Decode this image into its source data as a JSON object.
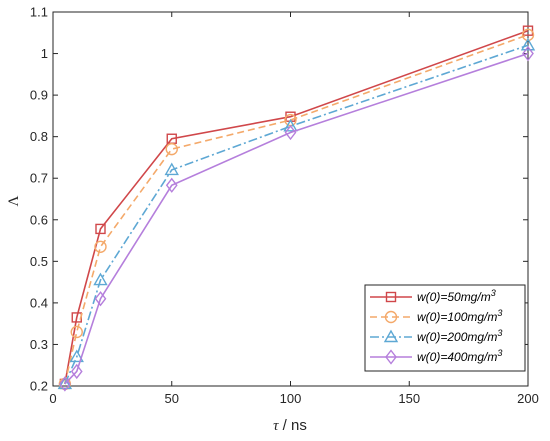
{
  "chart_data": {
    "type": "line",
    "title": "",
    "xlabel_symbol": "τ",
    "xlabel_unit": " / ns",
    "ylabel": "Λ",
    "xlim": [
      0,
      200
    ],
    "ylim": [
      0.2,
      1.1
    ],
    "xticks": [
      0,
      50,
      100,
      150,
      200
    ],
    "yticks": [
      0.2,
      0.3,
      0.4,
      0.5,
      0.6,
      0.7,
      0.8,
      0.9,
      1.0,
      1.1
    ],
    "ytick_labels": [
      "0.2",
      "0.3",
      "0.4",
      "0.5",
      "0.6",
      "0.7",
      "0.8",
      "0.9",
      "1",
      "1.1"
    ],
    "grid": false,
    "legend_position": "bottom-right",
    "x": [
      5,
      10,
      20,
      50,
      100,
      200
    ],
    "series": [
      {
        "name_prefix": "w(0)=50mg/m",
        "name_sup": "3",
        "color": "#d0474a",
        "dash": "",
        "marker": "square",
        "values": [
          0.205,
          0.365,
          0.578,
          0.795,
          0.848,
          1.055
        ]
      },
      {
        "name_prefix": "w(0)=100mg/m",
        "name_sup": "3",
        "color": "#f4a96a",
        "dash": "7,4",
        "marker": "circle",
        "values": [
          0.205,
          0.33,
          0.535,
          0.77,
          0.84,
          1.045
        ]
      },
      {
        "name_prefix": "w(0)=200mg/m",
        "name_sup": "3",
        "color": "#5ea8d4",
        "dash": "9,3,2,3",
        "marker": "triangle",
        "values": [
          0.205,
          0.27,
          0.455,
          0.72,
          0.825,
          1.02
        ]
      },
      {
        "name_prefix": "w(0)=400mg/m",
        "name_sup": "3",
        "color": "#b57fdc",
        "dash": "",
        "marker": "diamond",
        "values": [
          0.205,
          0.235,
          0.41,
          0.683,
          0.81,
          1.0
        ]
      }
    ]
  }
}
